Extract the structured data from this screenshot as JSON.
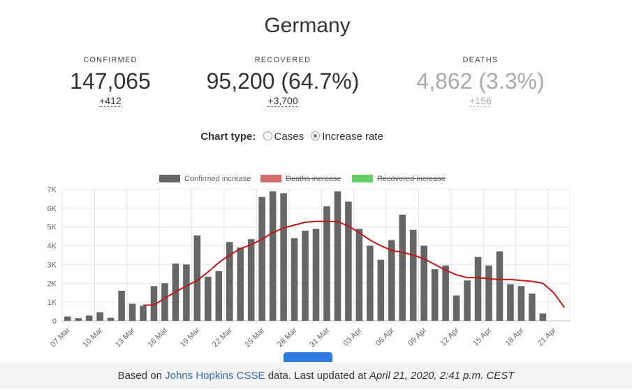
{
  "title": "Germany",
  "stats": {
    "confirmed": {
      "label": "CONFIRMED",
      "value": "147,065",
      "delta": "+412"
    },
    "recovered": {
      "label": "RECOVERED",
      "value": "95,200 (64.7%)",
      "delta": "+3,700"
    },
    "deaths": {
      "label": "DEATHS",
      "value": "4,862 (3.3%)",
      "delta": "+156"
    }
  },
  "chart_type": {
    "label": "Chart type:",
    "options": [
      "Cases",
      "Increase rate"
    ],
    "selected": "Increase rate"
  },
  "colors": {
    "bar": "#666666",
    "trend": "#c01818",
    "deaths_legend": "#d46b6b",
    "recovered_legend": "#66cc66",
    "link": "#2e6db4"
  },
  "chart_data": {
    "type": "bar",
    "legend": [
      {
        "name": "Confirmed increase",
        "color": "#666666",
        "hidden": false
      },
      {
        "name": "Deaths increase",
        "color": "#d46b6b",
        "hidden": true
      },
      {
        "name": "Recovered increase",
        "color": "#66cc66",
        "hidden": true
      }
    ],
    "ylim": [
      0,
      7000
    ],
    "yticks": [
      "0",
      "1K",
      "2K",
      "3K",
      "4K",
      "5K",
      "6K",
      "7K"
    ],
    "categories": [
      "07 Mar",
      "08 Mar",
      "09 Mar",
      "10 Mar",
      "11 Mar",
      "12 Mar",
      "13 Mar",
      "14 Mar",
      "15 Mar",
      "16 Mar",
      "17 Mar",
      "18 Mar",
      "19 Mar",
      "20 Mar",
      "21 Mar",
      "22 Mar",
      "23 Mar",
      "24 Mar",
      "25 Mar",
      "26 Mar",
      "27 Mar",
      "28 Mar",
      "29 Mar",
      "30 Mar",
      "31 Mar",
      "01 Apr",
      "02 Apr",
      "03 Apr",
      "04 Apr",
      "05 Apr",
      "06 Apr",
      "07 Apr",
      "08 Apr",
      "09 Apr",
      "10 Apr",
      "11 Apr",
      "12 Apr",
      "13 Apr",
      "14 Apr",
      "15 Apr",
      "16 Apr",
      "17 Apr",
      "18 Apr",
      "19 Apr",
      "20 Apr",
      "21 Apr",
      "22 Apr"
    ],
    "xtick_labels": [
      "07 Mar",
      "10 Mar",
      "13 Mar",
      "16 Mar",
      "19 Mar",
      "22 Mar",
      "25 Mar",
      "28 Mar",
      "31 Mar",
      "03 Apr",
      "06 Apr",
      "09 Apr",
      "12 Apr",
      "15 Apr",
      "18 Apr",
      "21 Apr"
    ],
    "series": [
      {
        "name": "Confirmed increase",
        "values": [
          230,
          140,
          280,
          450,
          160,
          1600,
          910,
          800,
          1850,
          2000,
          3050,
          3000,
          4550,
          2350,
          2650,
          4200,
          3900,
          4350,
          6600,
          6900,
          6800,
          4400,
          4800,
          4900,
          6100,
          6900,
          6350,
          4900,
          4000,
          3250,
          4300,
          5650,
          4850,
          4000,
          2750,
          2950,
          1350,
          2150,
          3400,
          2950,
          3700,
          1950,
          1850,
          1450,
          390,
          0,
          0
        ]
      },
      {
        "name": "Trend",
        "values": [
          null,
          null,
          null,
          null,
          null,
          null,
          null,
          830,
          850,
          1200,
          1550,
          1850,
          2150,
          2600,
          3100,
          3500,
          3850,
          4050,
          4350,
          4700,
          4950,
          5100,
          5250,
          5300,
          5300,
          5280,
          5050,
          4700,
          4300,
          4000,
          3750,
          3650,
          3500,
          3300,
          3000,
          2700,
          2450,
          2300,
          2300,
          2250,
          2200,
          2200,
          2150,
          2100,
          2000,
          1500,
          700
        ]
      }
    ]
  },
  "footer": {
    "prefix": "Based on ",
    "link": "Johns Hopkins CSSE",
    "middle": " data. Last updated at ",
    "date": "April 21, 2020, 2:41 p.m. CEST"
  }
}
